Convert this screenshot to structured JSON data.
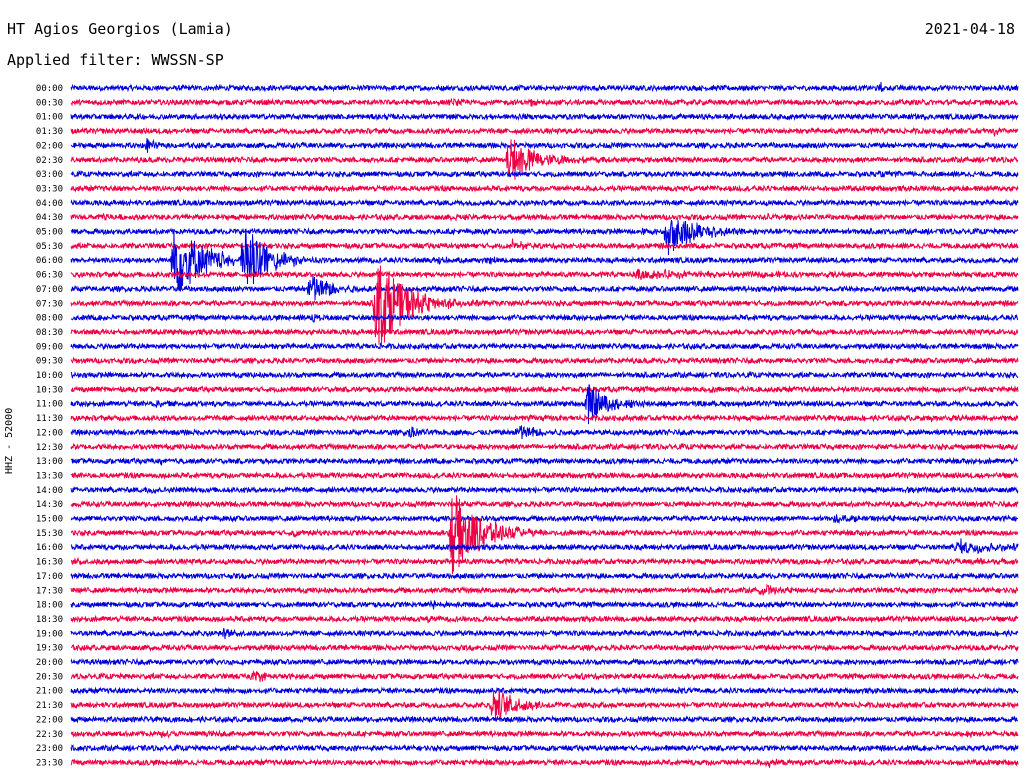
{
  "header": {
    "station": "HT Agios Georgios (Lamia)",
    "date": "2021-04-18",
    "filter_label": "Applied filter: WWSSN-SP"
  },
  "channel_label": "HHZ - 52000",
  "colors": {
    "blue": "#0000dd",
    "red": "#ee0044"
  },
  "chart_data": {
    "type": "line",
    "title": "HT Agios Georgios (Lamia)",
    "subtitle": "Applied filter: WWSSN-SP",
    "ylabel": "HHZ - 52000",
    "row_labels": [
      "00:00",
      "00:30",
      "01:00",
      "01:30",
      "02:00",
      "02:30",
      "03:00",
      "03:30",
      "04:00",
      "04:30",
      "05:00",
      "05:30",
      "06:00",
      "06:30",
      "07:00",
      "07:30",
      "08:00",
      "08:30",
      "09:00",
      "09:30",
      "10:00",
      "10:30",
      "11:00",
      "11:30",
      "12:00",
      "12:30",
      "13:00",
      "13:30",
      "14:00",
      "14:30",
      "15:00",
      "15:30",
      "16:00",
      "16:30",
      "17:00",
      "17:30",
      "18:00",
      "18:30",
      "19:00",
      "19:30",
      "20:00",
      "20:30",
      "21:00",
      "21:30",
      "22:00",
      "22:30",
      "23:00",
      "23:30"
    ],
    "row_colors": [
      "blue",
      "red"
    ],
    "minutes_per_row": 30,
    "events": [
      {
        "row": 0,
        "minute": 25.6,
        "amp": 0.35,
        "dur": 0.3
      },
      {
        "row": 1,
        "minute": 12.0,
        "amp": 0.15,
        "dur": 1.5
      },
      {
        "row": 1,
        "minute": 14.5,
        "amp": 0.15,
        "dur": 0.5
      },
      {
        "row": 2,
        "minute": 23.8,
        "amp": 0.1,
        "dur": 0.5
      },
      {
        "row": 3,
        "minute": 29.2,
        "amp": 0.3,
        "dur": 0.4
      },
      {
        "row": 4,
        "minute": 2.3,
        "amp": 0.5,
        "dur": 0.6
      },
      {
        "row": 5,
        "minute": 13.8,
        "amp": 1.6,
        "dur": 2.5
      },
      {
        "row": 6,
        "minute": 25.5,
        "amp": 0.1,
        "dur": 1.0
      },
      {
        "row": 9,
        "minute": 0.9,
        "amp": 0.2,
        "dur": 0.8
      },
      {
        "row": 9,
        "minute": 12.0,
        "amp": 0.15,
        "dur": 1.0
      },
      {
        "row": 9,
        "minute": 21.9,
        "amp": 0.3,
        "dur": 0.8
      },
      {
        "row": 10,
        "minute": 18.8,
        "amp": 1.6,
        "dur": 2.5
      },
      {
        "row": 10,
        "minute": 17.9,
        "amp": 0.15,
        "dur": 1.5
      },
      {
        "row": 11,
        "minute": 13.9,
        "amp": 0.4,
        "dur": 1.0
      },
      {
        "row": 12,
        "minute": 3.2,
        "amp": 2.8,
        "dur": 2.5
      },
      {
        "row": 12,
        "minute": 5.4,
        "amp": 2.8,
        "dur": 2.0
      },
      {
        "row": 12,
        "minute": 11.6,
        "amp": 0.3,
        "dur": 0.6
      },
      {
        "row": 12,
        "minute": 13.2,
        "amp": 0.3,
        "dur": 0.4
      },
      {
        "row": 13,
        "minute": 17.8,
        "amp": 0.3,
        "dur": 8.0
      },
      {
        "row": 14,
        "minute": 7.5,
        "amp": 1.2,
        "dur": 2.0
      },
      {
        "row": 15,
        "minute": 9.6,
        "amp": 3.5,
        "dur": 2.5
      },
      {
        "row": 16,
        "minute": 7.6,
        "amp": 0.3,
        "dur": 0.6
      },
      {
        "row": 21,
        "minute": 20.2,
        "amp": 0.15,
        "dur": 0.6
      },
      {
        "row": 22,
        "minute": 2.6,
        "amp": 0.2,
        "dur": 0.8
      },
      {
        "row": 22,
        "minute": 16.3,
        "amp": 1.4,
        "dur": 2.0
      },
      {
        "row": 23,
        "minute": 14.4,
        "amp": 0.15,
        "dur": 0.6
      },
      {
        "row": 23,
        "minute": 27.2,
        "amp": 0.2,
        "dur": 0.8
      },
      {
        "row": 24,
        "minute": 10.6,
        "amp": 0.4,
        "dur": 1.0
      },
      {
        "row": 24,
        "minute": 14.1,
        "amp": 0.6,
        "dur": 2.0
      },
      {
        "row": 26,
        "minute": 2.8,
        "amp": 0.15,
        "dur": 0.5
      },
      {
        "row": 28,
        "minute": 2.3,
        "amp": 0.2,
        "dur": 0.8
      },
      {
        "row": 28,
        "minute": 26.5,
        "amp": 0.15,
        "dur": 1.0
      },
      {
        "row": 30,
        "minute": 9.3,
        "amp": 0.15,
        "dur": 0.8
      },
      {
        "row": 30,
        "minute": 24.1,
        "amp": 0.2,
        "dur": 2.5
      },
      {
        "row": 31,
        "minute": 12.0,
        "amp": 3.2,
        "dur": 2.5
      },
      {
        "row": 31,
        "minute": 7.0,
        "amp": 0.2,
        "dur": 0.8
      },
      {
        "row": 32,
        "minute": 28.0,
        "amp": 0.5,
        "dur": 3.5
      },
      {
        "row": 33,
        "minute": 0.1,
        "amp": 0.15,
        "dur": 0.8
      },
      {
        "row": 33,
        "minute": 28.5,
        "amp": 0.15,
        "dur": 2.0
      },
      {
        "row": 34,
        "minute": 25.9,
        "amp": 0.15,
        "dur": 0.6
      },
      {
        "row": 35,
        "minute": 21.8,
        "amp": 0.6,
        "dur": 0.8
      },
      {
        "row": 36,
        "minute": 11.4,
        "amp": 0.2,
        "dur": 0.8
      },
      {
        "row": 37,
        "minute": 11.2,
        "amp": 0.2,
        "dur": 0.8
      },
      {
        "row": 38,
        "minute": 4.8,
        "amp": 0.3,
        "dur": 0.6
      },
      {
        "row": 40,
        "minute": 4.4,
        "amp": 0.15,
        "dur": 0.5
      },
      {
        "row": 41,
        "minute": 5.7,
        "amp": 0.5,
        "dur": 0.8
      },
      {
        "row": 41,
        "minute": 16.1,
        "amp": 0.15,
        "dur": 0.4
      },
      {
        "row": 42,
        "minute": 19.2,
        "amp": 0.15,
        "dur": 0.5
      },
      {
        "row": 43,
        "minute": 13.3,
        "amp": 1.4,
        "dur": 2.0
      },
      {
        "row": 43,
        "minute": 16.0,
        "amp": 0.15,
        "dur": 0.6
      },
      {
        "row": 45,
        "minute": 2.8,
        "amp": 0.15,
        "dur": 0.8
      },
      {
        "row": 45,
        "minute": 28.4,
        "amp": 0.2,
        "dur": 0.6
      },
      {
        "row": 47,
        "minute": 22.0,
        "amp": 0.3,
        "dur": 0.6
      }
    ]
  }
}
